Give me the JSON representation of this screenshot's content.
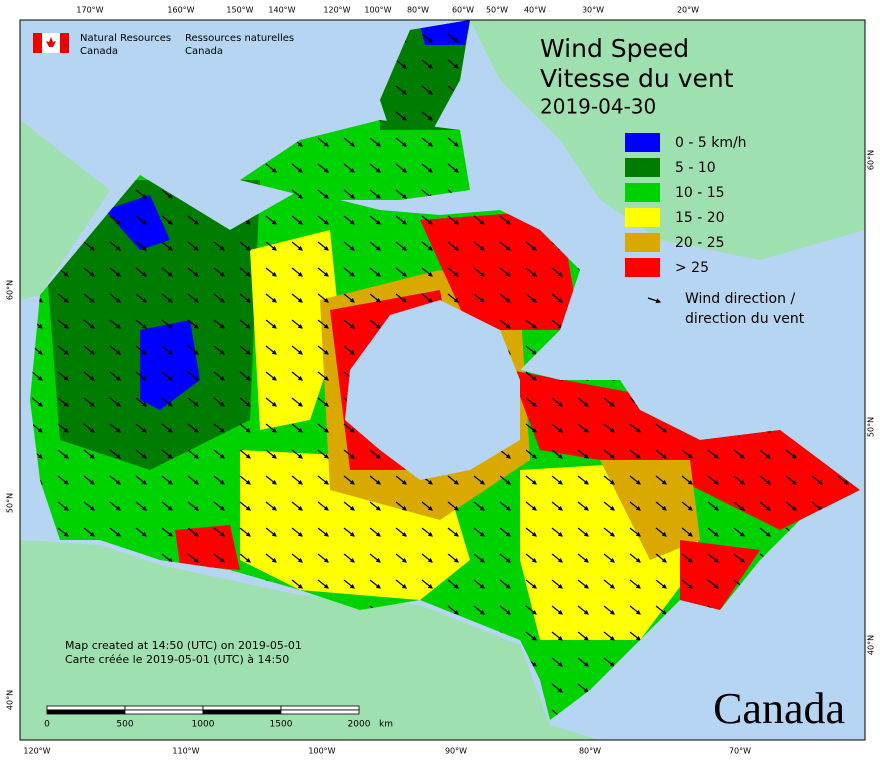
{
  "header": {
    "agency_en": [
      "Natural Resources",
      "Canada"
    ],
    "agency_fr": [
      "Ressources naturelles",
      "Canada"
    ]
  },
  "title": {
    "en": "Wind Speed",
    "fr": "Vitesse du vent",
    "date": "2019-04-30"
  },
  "legend": {
    "items": [
      {
        "label": "0 - 5 km/h",
        "color": "#0000ff"
      },
      {
        "label": "5 - 10",
        "color": "#007d00"
      },
      {
        "label": "10 - 15",
        "color": "#00d200"
      },
      {
        "label": "15 - 20",
        "color": "#ffff00"
      },
      {
        "label": "20 - 25",
        "color": "#d9a900"
      },
      {
        "label": "> 25",
        "color": "#ff0000"
      }
    ],
    "arrow": [
      "Wind direction /",
      "direction du vent"
    ]
  },
  "note": [
    "Map created at 14:50 (UTC) on 2019-05-01",
    "Carte créée le 2019-05-01 (UTC) à 14:50"
  ],
  "scale_bar": {
    "ticks": [
      "0",
      "500",
      "1000",
      "1500",
      "2000"
    ],
    "unit": "km"
  },
  "graticule": {
    "top": [
      "170°W",
      "160°W",
      "150°W",
      "140°W",
      "120°W",
      "100°W",
      "80°W",
      "60°W",
      "50°W",
      "40°W",
      "30°W",
      "20°W"
    ],
    "bottom": [
      "120°W",
      "110°W",
      "100°W",
      "90°W",
      "80°W",
      "70°W"
    ],
    "left": [
      "60°N",
      "50°N",
      "40°N"
    ],
    "right": [
      "60°N",
      "50°N",
      "40°N"
    ]
  },
  "wordmark": "Canada"
}
